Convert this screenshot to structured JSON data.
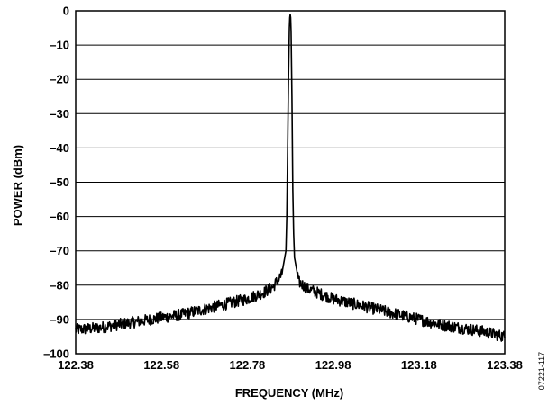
{
  "figure_id": "07221-117",
  "chart_data": {
    "type": "line",
    "title": "",
    "xlabel": "FREQUENCY (MHz)",
    "ylabel": "POWER (dBm)",
    "xlim": [
      122.38,
      123.38
    ],
    "ylim": [
      -100,
      0
    ],
    "x_ticks": [
      122.38,
      122.58,
      122.78,
      122.98,
      123.18,
      123.38
    ],
    "x_tick_labels": [
      "122.38",
      "122.58",
      "122.78",
      "122.98",
      "123.18",
      "123.38"
    ],
    "y_ticks": [
      0,
      -10,
      -20,
      -30,
      -40,
      -50,
      -60,
      -70,
      -80,
      -90,
      -100
    ],
    "y_tick_labels": [
      "0",
      "–10",
      "–20",
      "–30",
      "–40",
      "–50",
      "–60",
      "–70",
      "–80",
      "–90",
      "–100"
    ],
    "grid": "horizontal",
    "line_color": "#000000",
    "series": [
      {
        "x": [
          122.38,
          122.43,
          122.48,
          122.53,
          122.58,
          122.63,
          122.68,
          122.73,
          122.78,
          122.8,
          122.82,
          122.84,
          122.86,
          122.87,
          122.872,
          122.874,
          122.876,
          122.878,
          122.879,
          122.88,
          122.881,
          122.882,
          122.884,
          122.886,
          122.888,
          122.89,
          122.9,
          122.92,
          122.94,
          122.98,
          123.03,
          123.08,
          123.13,
          123.18,
          123.23,
          123.28,
          123.33,
          123.38
        ],
        "y": [
          -93,
          -92.5,
          -91.5,
          -90.5,
          -89.5,
          -88.5,
          -87,
          -85.5,
          -84,
          -83,
          -82,
          -80.5,
          -77,
          -70,
          -60,
          -40,
          -20,
          -5,
          -2,
          -1,
          -2,
          -6,
          -25,
          -52,
          -65,
          -72,
          -79,
          -81,
          -82,
          -84,
          -85.5,
          -87,
          -88.5,
          -90,
          -91.5,
          -92.5,
          -93.5,
          -95
        ]
      }
    ]
  }
}
